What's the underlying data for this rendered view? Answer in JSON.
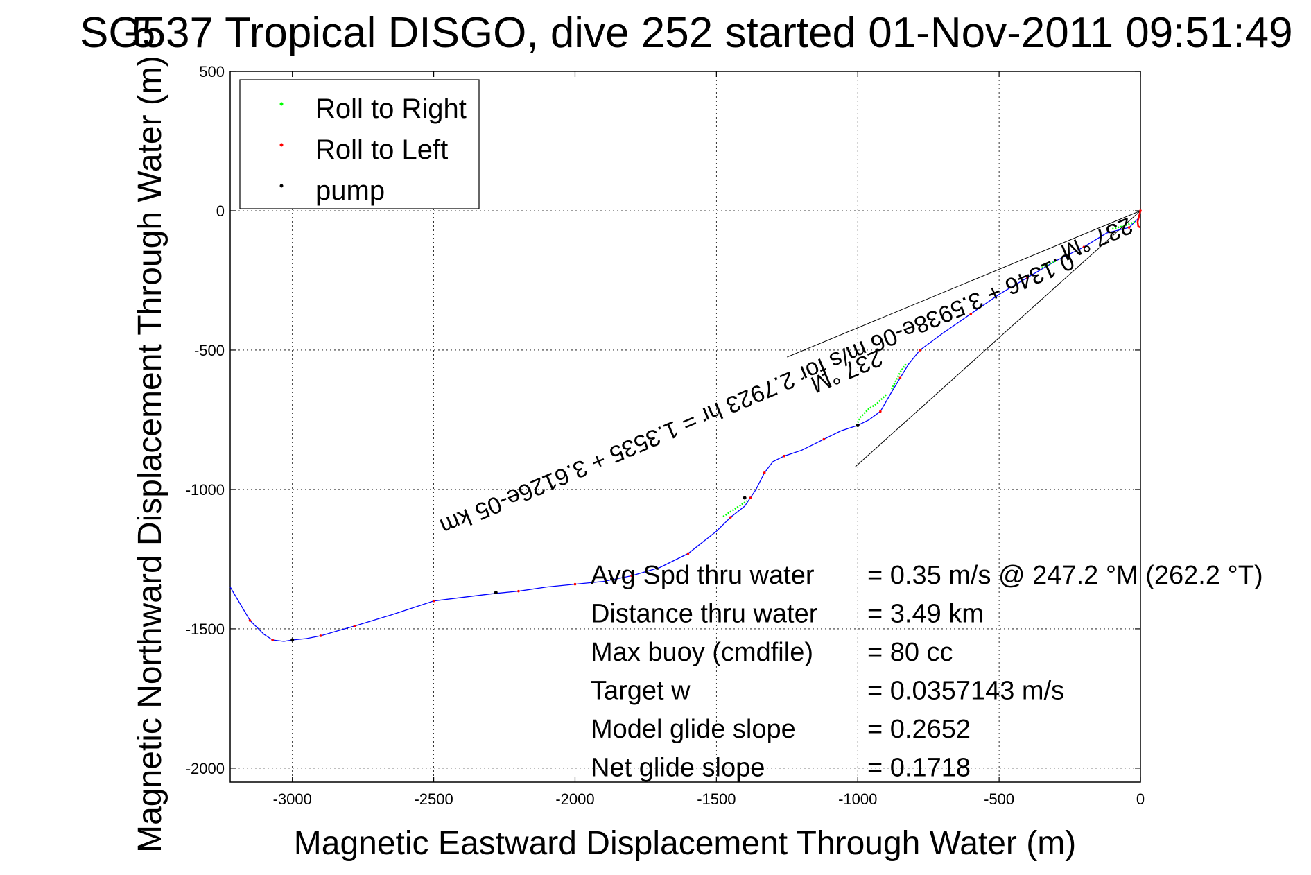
{
  "chart_data": {
    "type": "line",
    "title": "SG537 Tropical DISGO, dive 252 started 01-Nov-2011 09:51:49",
    "title_overlay": "5",
    "xlabel": "Magnetic Eastward Displacement Through Water (m)",
    "ylabel": "Magnetic Northward Displacement Through Water (m)",
    "xlim": [
      -3220,
      0
    ],
    "ylim": [
      -2050,
      500
    ],
    "xticks": [
      -3000,
      -2500,
      -2000,
      -1500,
      -1000,
      -500,
      0
    ],
    "yticks": [
      500,
      0,
      -500,
      -1000,
      -1500,
      -2000
    ],
    "xtick_labels": [
      "-3000",
      "-2500",
      "-2000",
      "-1500",
      "-1000",
      "-500",
      "0"
    ],
    "ytick_labels": [
      "500",
      "0",
      "-500",
      "-1000",
      "-1500",
      "-2000"
    ],
    "grid": true,
    "legend_position": "top-left",
    "legend": [
      {
        "label": "Roll to Right",
        "color": "#00ff00"
      },
      {
        "label": "Roll to Left",
        "color": "#ff0000"
      },
      {
        "label": "pump",
        "color": "#000000"
      }
    ],
    "series": [
      {
        "color": "#0000ff",
        "x": [
          0,
          -10,
          -40,
          -120,
          -200,
          -300,
          -400,
          -500,
          -600,
          -700,
          -780,
          -820,
          -850,
          -880,
          -920,
          -960,
          -1000,
          -1060,
          -1120,
          -1200,
          -1260,
          -1300,
          -1330,
          -1360,
          -1380,
          -1400,
          -1450,
          -1500,
          -1600,
          -1700,
          -1800,
          -1900,
          -2000,
          -2100,
          -2200,
          -2300,
          -2500,
          -2650,
          -2780,
          -2850,
          -2900,
          -2950,
          -3000,
          -3030,
          -3070,
          -3100,
          -3150,
          -3220
        ],
        "y": [
          0,
          -30,
          -60,
          -80,
          -130,
          -180,
          -240,
          -300,
          -370,
          -440,
          -500,
          -550,
          -600,
          -650,
          -720,
          -750,
          -770,
          -790,
          -820,
          -860,
          -880,
          -900,
          -940,
          -1000,
          -1030,
          -1060,
          -1100,
          -1150,
          -1230,
          -1280,
          -1310,
          -1330,
          -1340,
          -1350,
          -1365,
          -1375,
          -1400,
          -1450,
          -1490,
          -1510,
          -1525,
          -1535,
          -1540,
          -1545,
          -1540,
          -1520,
          -1470,
          -1350
        ]
      }
    ],
    "roll_right_segments": [
      {
        "x": [
          -20,
          -60,
          -100
        ],
        "y": [
          -40,
          -55,
          -65
        ]
      },
      {
        "x": [
          -300,
          -330,
          -350
        ],
        "y": [
          -180,
          -195,
          -205
        ]
      },
      {
        "x": [
          -830,
          -850,
          -870,
          -880
        ],
        "y": [
          -550,
          -580,
          -620,
          -640
        ]
      },
      {
        "x": [
          -900,
          -930,
          -960,
          -990,
          -1000
        ],
        "y": [
          -660,
          -690,
          -710,
          -740,
          -760
        ]
      },
      {
        "x": [
          -1390,
          -1420,
          -1450,
          -1480
        ],
        "y": [
          -1040,
          -1060,
          -1080,
          -1100
        ]
      }
    ],
    "roll_left_segments": [
      {
        "x": [
          0,
          -5,
          -10,
          -8,
          -2
        ],
        "y": [
          0,
          -20,
          -40,
          -55,
          -60
        ]
      }
    ],
    "pump_points": [
      {
        "x": -1000,
        "y": -770
      },
      {
        "x": -1400,
        "y": -1030
      },
      {
        "x": -1870,
        "y": -1320
      },
      {
        "x": -2280,
        "y": -1370
      },
      {
        "x": -3000,
        "y": -1540
      }
    ],
    "lines": [
      {
        "x": [
          0,
          -1250
        ],
        "y": [
          0,
          -525
        ]
      },
      {
        "x": [
          0,
          -1010
        ],
        "y": [
          0,
          -920
        ]
      }
    ],
    "annotations": [
      {
        "text": "237 °M",
        "x": -165,
        "y": -75,
        "angle": 157,
        "anchor": "middle"
      },
      {
        "text": "0.1346 + 3.5938e-06 m/s for 2.7923 hr = 1.3535 + 3.6126e-05 km",
        "x": -250,
        "y": -150,
        "angle": 157,
        "anchor": "start"
      },
      {
        "text": "237 °M",
        "x": -1050,
        "y": -550,
        "angle": 157,
        "anchor": "middle"
      }
    ],
    "stats": [
      {
        "label": "Avg Spd thru water",
        "value": "=  0.35 m/s @ 247.2 °M (262.2 °T)"
      },
      {
        "label": "Distance thru water",
        "value": "=  3.49 km"
      },
      {
        "label": "Max buoy (cmdfile)",
        "value": "= 80 cc"
      },
      {
        "label": "Target w",
        "value": "= 0.0357143 m/s"
      },
      {
        "label": "Model glide slope",
        "value": "= 0.2652"
      },
      {
        "label": "Net glide slope",
        "value": "= 0.1718"
      }
    ]
  }
}
